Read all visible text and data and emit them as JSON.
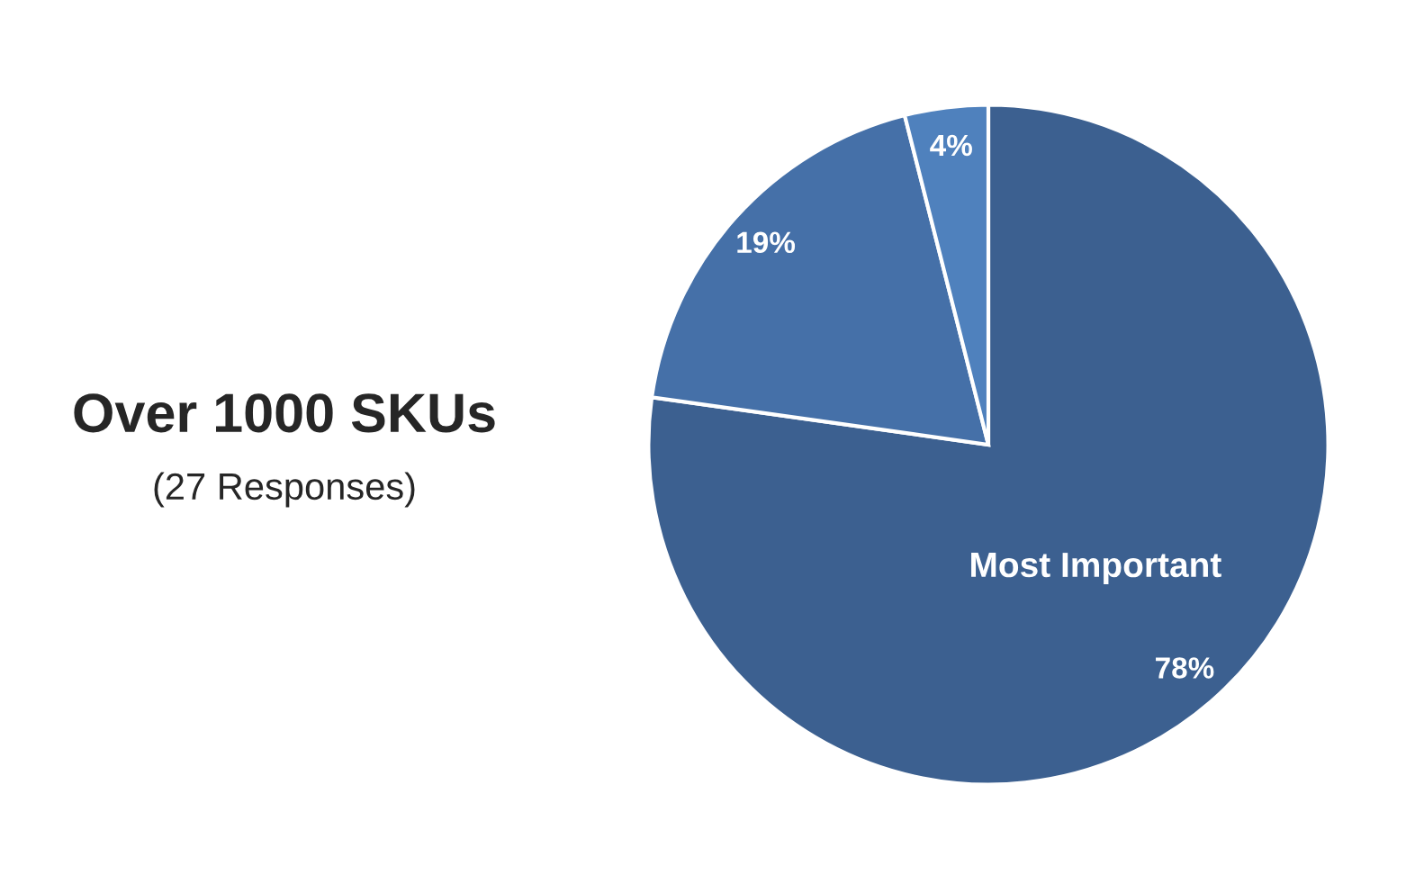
{
  "chart_data": {
    "type": "pie",
    "title": "Over 1000 SKUs",
    "subtitle": "(27 Responses)",
    "categories": [
      "Most Important",
      null,
      null
    ],
    "values": [
      78,
      19,
      4
    ],
    "colors": [
      "#3c6090",
      "#4570a8",
      "#4f81bd"
    ],
    "value_labels": [
      "78%",
      "19%",
      "4%"
    ]
  }
}
